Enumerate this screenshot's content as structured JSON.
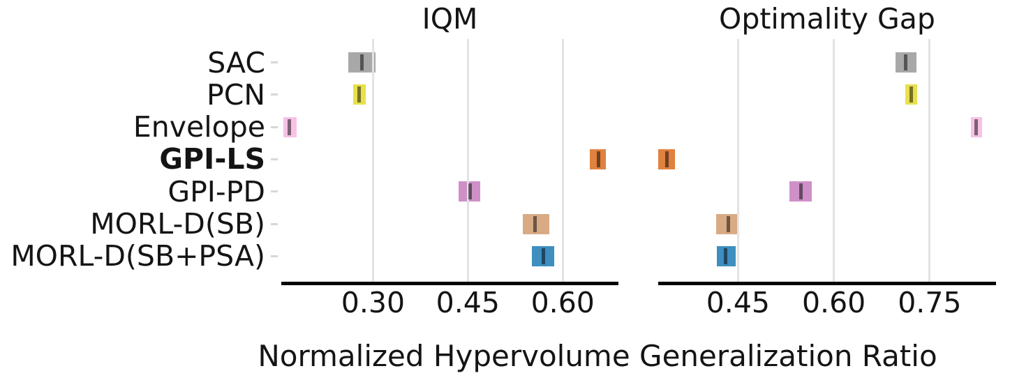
{
  "figure": {
    "xlabel": "Normalized Hypervolume Generalization Ratio"
  },
  "chart_data": {
    "type": "interval",
    "description": "Interquartile mean (IQM) and Optimality Gap point estimates with confidence interval bars per algorithm",
    "xlabel": "Normalized Hypervolume Generalization Ratio",
    "grid": true,
    "point_line_color": "rgba(0,0,0,0.5)",
    "algorithms": [
      {
        "name": "SAC",
        "bold": false,
        "color": "#a8a8a8"
      },
      {
        "name": "PCN",
        "bold": false,
        "color": "#e8e04c"
      },
      {
        "name": "Envelope",
        "bold": false,
        "color": "#f7c2e6"
      },
      {
        "name": "GPI-LS",
        "bold": true,
        "color": "#e0813f"
      },
      {
        "name": "GPI-PD",
        "bold": false,
        "color": "#cf90c8"
      },
      {
        "name": "MORL-D(SB)",
        "bold": false,
        "color": "#d8ab85"
      },
      {
        "name": "MORL-D(SB+PSA)",
        "bold": false,
        "color": "#3e8ec0"
      }
    ],
    "panels": [
      {
        "title": "IQM",
        "xlim": [
          0.155,
          0.688
        ],
        "ticks": [
          {
            "value": 0.3,
            "label": "0.30"
          },
          {
            "value": 0.45,
            "label": "0.45"
          },
          {
            "value": 0.6,
            "label": "0.60"
          }
        ],
        "series": [
          {
            "name": "SAC",
            "interval": [
              0.261,
              0.304
            ],
            "point": 0.283
          },
          {
            "name": "PCN",
            "interval": [
              0.269,
              0.288
            ],
            "point": 0.278
          },
          {
            "name": "Envelope",
            "interval": [
              0.158,
              0.179
            ],
            "point": 0.168
          },
          {
            "name": "GPI-LS",
            "interval": [
              0.643,
              0.668
            ],
            "point": 0.656
          },
          {
            "name": "GPI-PD",
            "interval": [
              0.435,
              0.47
            ],
            "point": 0.454
          },
          {
            "name": "MORL-D(SB)",
            "interval": [
              0.537,
              0.579
            ],
            "point": 0.556
          },
          {
            "name": "MORL-D(SB+PSA)",
            "interval": [
              0.551,
              0.587
            ],
            "point": 0.569
          }
        ]
      },
      {
        "title": "Optimality Gap",
        "xlim": [
          0.325,
          0.854
        ],
        "ticks": [
          {
            "value": 0.45,
            "label": "0.45"
          },
          {
            "value": 0.6,
            "label": "0.60"
          },
          {
            "value": 0.75,
            "label": "0.75"
          }
        ],
        "series": [
          {
            "name": "SAC",
            "interval": [
              0.697,
              0.729
            ],
            "point": 0.713
          },
          {
            "name": "PCN",
            "interval": [
              0.712,
              0.73
            ],
            "point": 0.721
          },
          {
            "name": "Envelope",
            "interval": [
              0.815,
              0.832
            ],
            "point": 0.823
          },
          {
            "name": "GPI-LS",
            "interval": [
              0.325,
              0.351
            ],
            "point": 0.339
          },
          {
            "name": "GPI-PD",
            "interval": [
              0.53,
              0.565
            ],
            "point": 0.549
          },
          {
            "name": "MORL-D(SB)",
            "interval": [
              0.416,
              0.452
            ],
            "point": 0.435
          },
          {
            "name": "MORL-D(SB+PSA)",
            "interval": [
              0.417,
              0.446
            ],
            "point": 0.431
          }
        ]
      }
    ]
  }
}
